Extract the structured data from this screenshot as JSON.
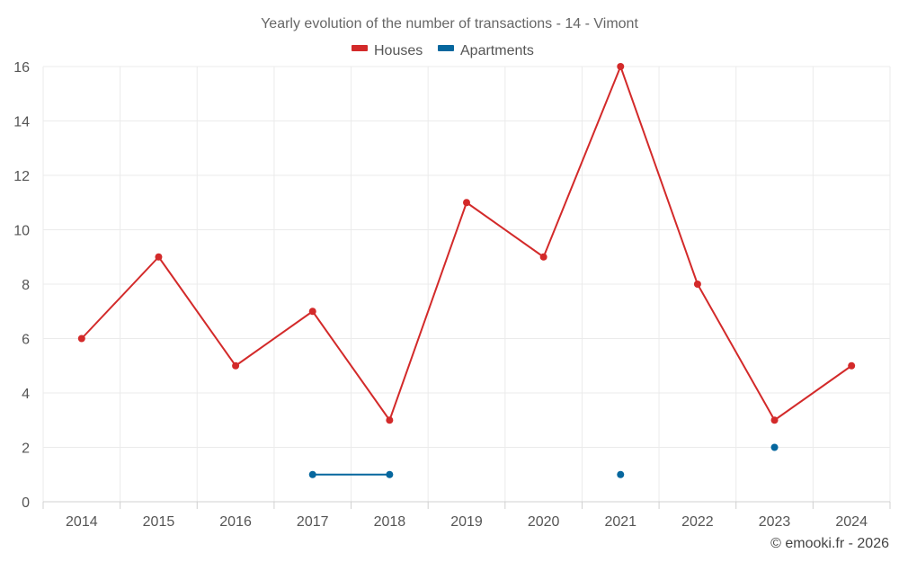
{
  "chart_data": {
    "type": "line",
    "title": "Yearly evolution of the number of transactions - 14 - Vimont",
    "categories": [
      "2014",
      "2015",
      "2016",
      "2017",
      "2018",
      "2019",
      "2020",
      "2021",
      "2022",
      "2023",
      "2024"
    ],
    "series": [
      {
        "name": "Houses",
        "color": "#d32a2a",
        "values": [
          6,
          9,
          5,
          7,
          3,
          11,
          9,
          16,
          8,
          3,
          5
        ]
      },
      {
        "name": "Apartments",
        "color": "#06679e",
        "values": [
          null,
          null,
          null,
          1,
          1,
          null,
          null,
          1,
          null,
          2,
          null
        ]
      }
    ],
    "ylim": [
      0,
      16
    ],
    "yticks": [
      0,
      2,
      4,
      6,
      8,
      10,
      12,
      14,
      16
    ],
    "xlabel": "",
    "ylabel": "",
    "legend": "top-center",
    "grid": true
  },
  "credit": "© emooki.fr - 2026"
}
